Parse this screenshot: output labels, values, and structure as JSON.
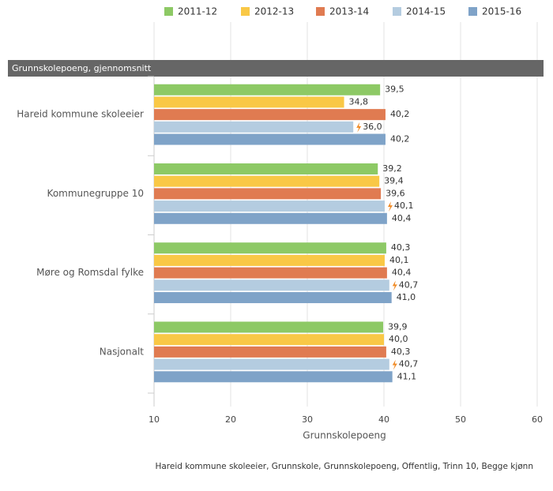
{
  "chart_data": {
    "type": "bar",
    "orientation": "horizontal",
    "subtitle": "Grunnskolepoeng, gjennomsnitt",
    "x_label": "Grunnskolepoeng",
    "caption": "Hareid kommune skoleeier, Grunnskole, Grunnskolepoeng, Offentlig, Trinn 10, Begge kjønn",
    "categories": [
      "Hareid kommune skoleeier",
      "Kommunegruppe 10",
      "Møre og Romsdal fylke",
      "Nasjonalt"
    ],
    "series": [
      {
        "name": "2011-12",
        "color": "#8dc965",
        "values": [
          39.5,
          39.2,
          40.3,
          39.9
        ],
        "value_labels": [
          "39,5",
          "39,2",
          "40,3",
          "39,9"
        ]
      },
      {
        "name": "2012-13",
        "color": "#f9c846",
        "values": [
          34.8,
          39.4,
          40.1,
          40.0
        ],
        "value_labels": [
          "34,8",
          "39,4",
          "40,1",
          "40,0"
        ]
      },
      {
        "name": "2013-14",
        "color": "#e07b51",
        "values": [
          40.2,
          39.6,
          40.4,
          40.3
        ],
        "value_labels": [
          "40,2",
          "39,6",
          "40,4",
          "40,3"
        ]
      },
      {
        "name": "2014-15",
        "color": "#b4cce0",
        "values": [
          36.0,
          40.1,
          40.7,
          40.7
        ],
        "value_labels": [
          "36,0",
          "40,1",
          "40,7",
          "40,7"
        ]
      },
      {
        "name": "2015-16",
        "color": "#7fa3c8",
        "values": [
          40.2,
          40.4,
          41.0,
          41.1
        ],
        "value_labels": [
          "40,2",
          "40,4",
          "41,0",
          "41,1"
        ]
      }
    ],
    "xlim": [
      10,
      60
    ],
    "xticks": [
      10,
      20,
      30,
      40,
      50,
      60
    ],
    "grid": true,
    "legend": "top"
  }
}
